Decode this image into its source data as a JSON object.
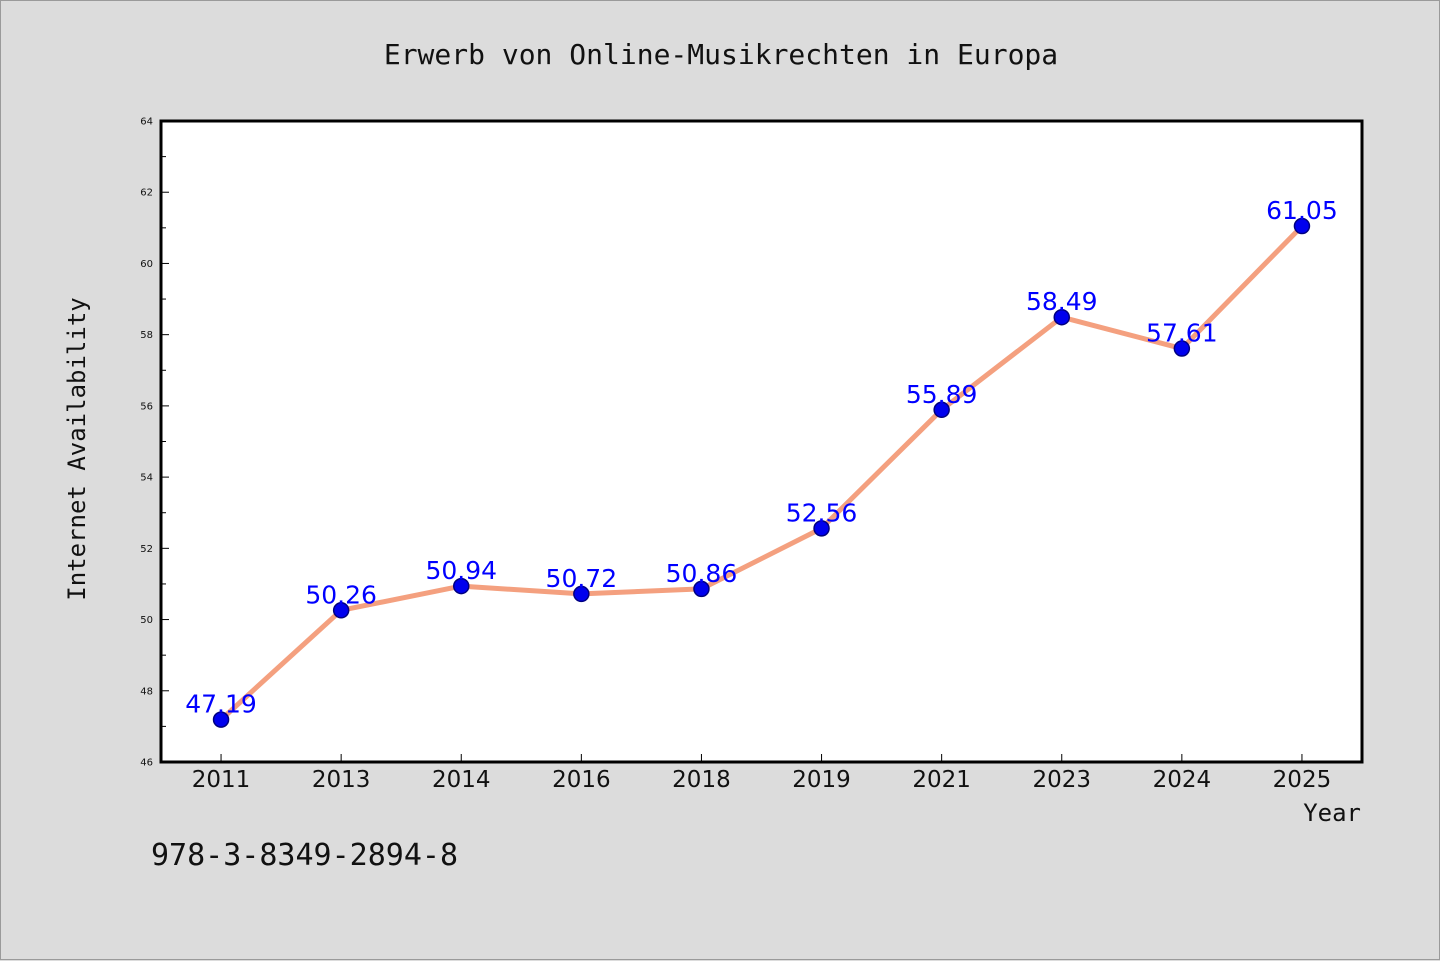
{
  "chart_data": {
    "type": "line",
    "title": "Erwerb von Online-Musikrechten in Europa",
    "xlabel": "Year",
    "ylabel": "Internet Availability",
    "categories": [
      "2011",
      "2013",
      "2014",
      "2016",
      "2018",
      "2019",
      "2021",
      "2023",
      "2024",
      "2025"
    ],
    "series": [
      {
        "values": [
          47.19,
          50.26,
          50.94,
          50.72,
          50.86,
          52.56,
          55.89,
          58.49,
          57.61,
          61.05
        ]
      }
    ],
    "data_labels": [
      "47.19",
      "50.26",
      "50.94",
      "50.72",
      "50.86",
      "52.56",
      "55.89",
      "58.49",
      "57.61",
      "61.05"
    ],
    "ylim": [
      46,
      64
    ],
    "yticks": [
      "46",
      "48",
      "50",
      "52",
      "54",
      "56",
      "58",
      "60",
      "62",
      "64"
    ],
    "grid": false,
    "legend": "none",
    "colors": {
      "line": "#f4a07f",
      "marker": "#0000ee",
      "marker_edge": "#000080",
      "label": "#0000ff",
      "background": "#dcdcdc",
      "plot_background": "#ffffff"
    }
  },
  "annotation": {
    "isbn": "978-3-8349-2894-8"
  }
}
